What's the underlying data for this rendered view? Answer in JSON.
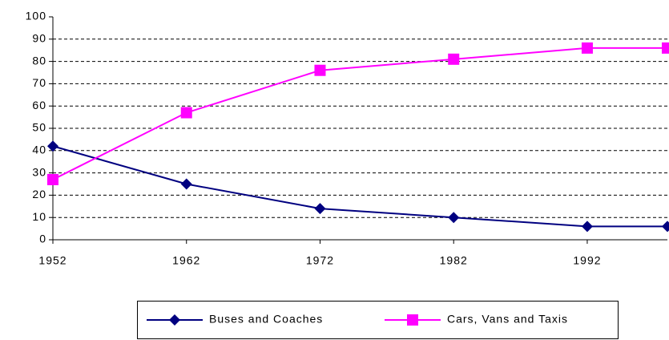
{
  "chart_data": {
    "type": "line",
    "x": [
      1952,
      1962,
      1972,
      1982,
      1992,
      1998
    ],
    "series": [
      {
        "name": "Buses and Coaches",
        "color": "#000080",
        "marker": "diamond",
        "values": [
          42,
          25,
          14,
          10,
          6,
          6
        ]
      },
      {
        "name": "Cars, Vans and Taxis",
        "color": "#ff00ff",
        "marker": "square",
        "values": [
          27,
          57,
          76,
          81,
          86,
          86
        ]
      }
    ],
    "xlim": [
      1952,
      1998
    ],
    "xticks": [
      1952,
      1962,
      1972,
      1982,
      1992
    ],
    "ylim": [
      0,
      100
    ],
    "yticks": [
      0,
      10,
      20,
      30,
      40,
      50,
      60,
      70,
      80,
      90,
      100
    ],
    "grid": true,
    "legend": "bottom"
  }
}
